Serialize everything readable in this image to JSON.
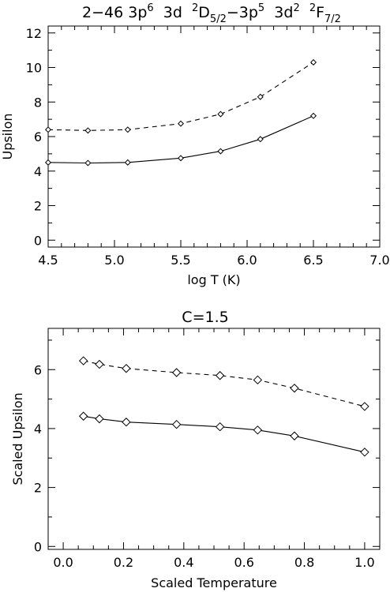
{
  "chart_data": [
    {
      "type": "line",
      "title": {
        "prefix": "2−46  3p",
        "sup1": "6",
        "mid1": "  3d  ",
        "sup2": "2",
        "mid2": "D",
        "sub1": "5/2",
        "mid3": "−3p",
        "sup3": "5",
        "mid4": "  3d",
        "sup4": "2",
        "mid5": "  ",
        "sup5": "2",
        "mid6": "F",
        "sub2": "7/2"
      },
      "xlabel": "log T (K)",
      "ylabel": "Upsilon",
      "xlim": [
        4.5,
        7.0
      ],
      "ylim": [
        -0.4,
        12.4
      ],
      "xticks": [
        "4.5",
        "5.0",
        "5.5",
        "6.0",
        "6.5",
        "7.0"
      ],
      "xtick_values": [
        4.5,
        5.0,
        5.5,
        6.0,
        6.5,
        7.0
      ],
      "yticks": [
        "0",
        "2",
        "4",
        "6",
        "8",
        "10",
        "12"
      ],
      "ytick_values": [
        0,
        2,
        4,
        6,
        8,
        10,
        12
      ],
      "series": [
        {
          "style": "dashed",
          "marker": "diamond",
          "x": [
            4.5,
            4.8,
            5.1,
            5.5,
            5.8,
            6.1,
            6.5
          ],
          "y": [
            6.4,
            6.35,
            6.4,
            6.75,
            7.3,
            8.3,
            10.3
          ]
        },
        {
          "style": "solid",
          "marker": "diamond",
          "x": [
            4.5,
            4.8,
            5.1,
            5.5,
            5.8,
            6.1,
            6.5
          ],
          "y": [
            4.5,
            4.47,
            4.5,
            4.75,
            5.15,
            5.85,
            7.2
          ]
        }
      ]
    },
    {
      "type": "line",
      "title": "C=1.5",
      "xlabel": "Scaled Temperature",
      "ylabel": "Scaled Upsilon",
      "xlim": [
        -0.05,
        1.05
      ],
      "ylim": [
        -0.1,
        7.4
      ],
      "xticks": [
        "0.0",
        "0.2",
        "0.4",
        "0.6",
        "0.8",
        "1.0"
      ],
      "xtick_values": [
        0.0,
        0.2,
        0.4,
        0.6,
        0.8,
        1.0
      ],
      "yticks": [
        "0",
        "2",
        "4",
        "6"
      ],
      "ytick_values": [
        0,
        2,
        4,
        6
      ],
      "series": [
        {
          "style": "dashed",
          "marker": "diamond",
          "x": [
            0.067,
            0.12,
            0.209,
            0.376,
            0.52,
            0.645,
            0.767,
            1.0
          ],
          "y": [
            6.3,
            6.18,
            6.04,
            5.9,
            5.8,
            5.65,
            5.37,
            4.75
          ]
        },
        {
          "style": "solid",
          "marker": "diamond",
          "x": [
            0.067,
            0.12,
            0.209,
            0.376,
            0.52,
            0.645,
            0.767,
            1.0
          ],
          "y": [
            4.42,
            4.33,
            4.22,
            4.14,
            4.06,
            3.95,
            3.75,
            3.2
          ]
        }
      ]
    }
  ]
}
